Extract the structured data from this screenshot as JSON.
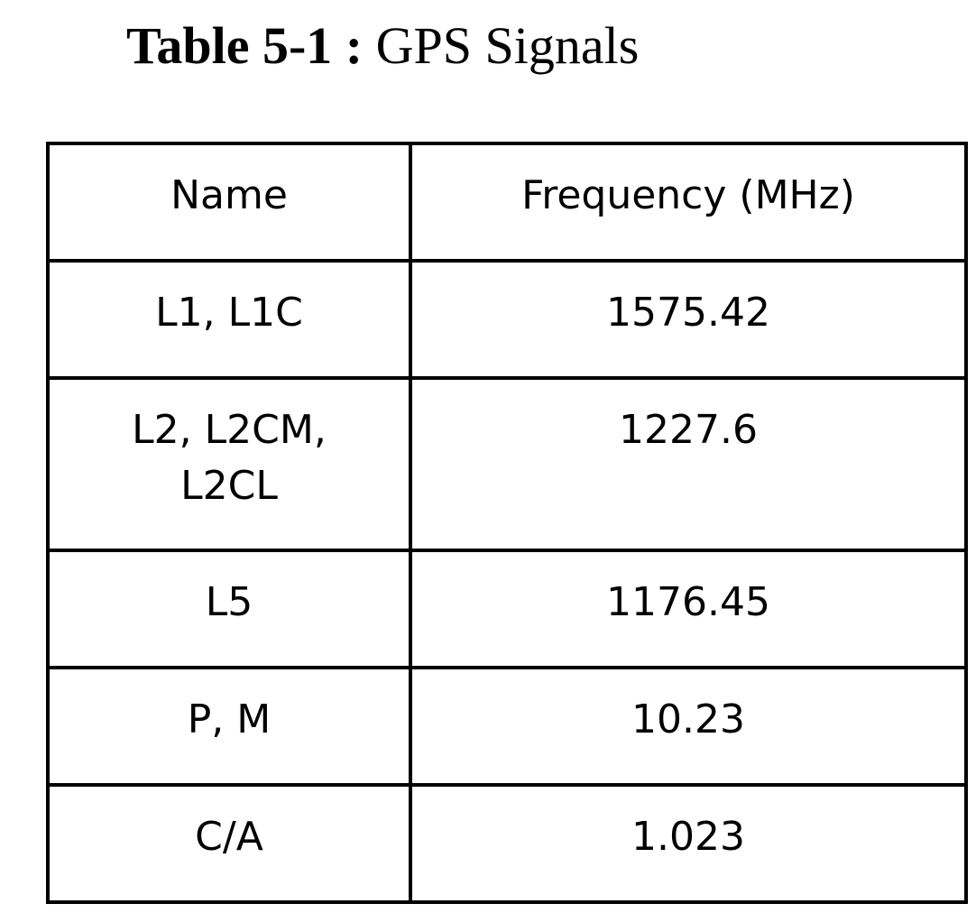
{
  "caption": {
    "label": "Table 5-1 :",
    "title": "GPS Signals"
  },
  "table": {
    "headers": {
      "name": "Name",
      "frequency": "Frequency (MHz)"
    },
    "rows": [
      {
        "name": "L1, L1C",
        "frequency": "1575.42"
      },
      {
        "name": "L2, L2CM, L2CL",
        "frequency": "1227.6"
      },
      {
        "name": "L5",
        "frequency": "1176.45"
      },
      {
        "name": "P, M",
        "frequency": "10.23"
      },
      {
        "name": "C/A",
        "frequency": "1.023"
      }
    ]
  }
}
